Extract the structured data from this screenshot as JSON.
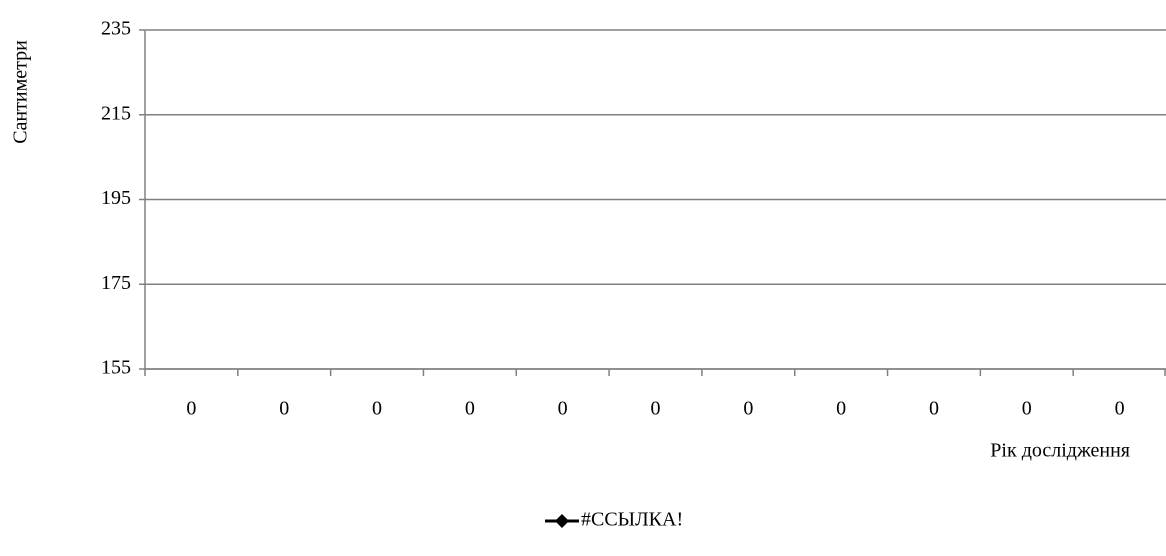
{
  "chart_data": {
    "type": "line",
    "x_label": "Рік дослідження",
    "y_label": "Сантиметри",
    "categories": [
      "0",
      "0",
      "0",
      "0",
      "0",
      "0",
      "0",
      "0",
      "0",
      "0",
      "0"
    ],
    "series": [
      {
        "name": "#ССЫЛКА!",
        "color": "#000000",
        "values": [
          null,
          null,
          null,
          null,
          null,
          null,
          null,
          null,
          null,
          null,
          null
        ]
      }
    ],
    "ylim": [
      155,
      235
    ],
    "yticks": [
      155,
      175,
      195,
      215,
      235
    ],
    "grid": true,
    "legend": "bottom"
  }
}
